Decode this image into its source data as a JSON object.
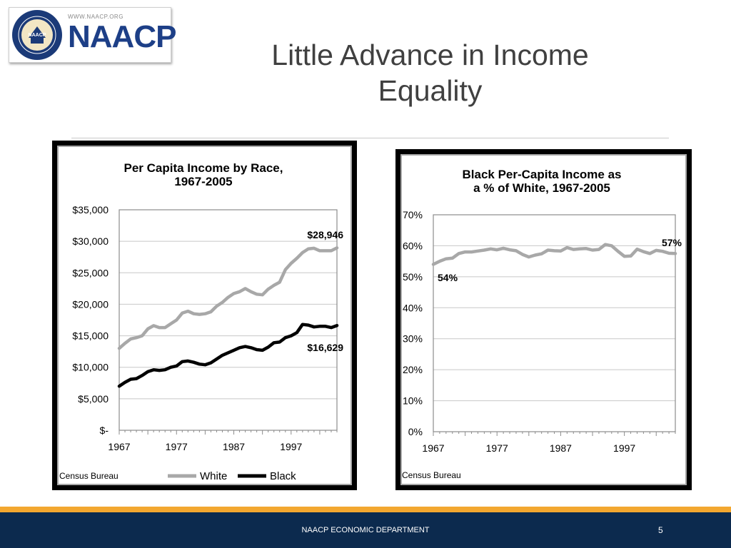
{
  "logo": {
    "url": "WWW.NAACP.ORG",
    "name": "NAACP",
    "seal_text": "NAACP"
  },
  "slide": {
    "title_line1": "Little Advance in Income",
    "title_line2": "Equality"
  },
  "chart_data": [
    {
      "type": "line",
      "title": [
        "Per Capita Income by Race,",
        "1967-2005"
      ],
      "xlabel": "",
      "ylabel": "",
      "xlim": [
        1967,
        2005
      ],
      "ylim": [
        0,
        35000
      ],
      "x_ticks": [
        1967,
        1977,
        1987,
        1997
      ],
      "x_tick_labels": [
        "1967",
        "1977",
        "1987",
        "1997"
      ],
      "y_ticks": [
        0,
        5000,
        10000,
        15000,
        20000,
        25000,
        30000,
        35000
      ],
      "y_tick_labels": [
        "$-",
        "$5,000",
        "$10,000",
        "$15,000",
        "$20,000",
        "$25,000",
        "$30,000",
        "$35,000"
      ],
      "grid": true,
      "legend_position": "bottom",
      "source": "Census Bureau",
      "series": [
        {
          "name": "White",
          "color": "#a8a8a8",
          "x": [
            1967,
            1968,
            1969,
            1970,
            1971,
            1972,
            1973,
            1974,
            1975,
            1976,
            1977,
            1978,
            1979,
            1980,
            1981,
            1982,
            1983,
            1984,
            1985,
            1986,
            1987,
            1988,
            1989,
            1990,
            1991,
            1992,
            1993,
            1994,
            1995,
            1996,
            1997,
            1998,
            1999,
            2000,
            2001,
            2002,
            2003,
            2004,
            2005
          ],
          "values": [
            13000,
            13800,
            14500,
            14700,
            15000,
            16100,
            16600,
            16300,
            16300,
            16900,
            17500,
            18600,
            18900,
            18500,
            18400,
            18500,
            18800,
            19700,
            20300,
            21100,
            21700,
            22000,
            22500,
            22000,
            21600,
            21500,
            22400,
            23000,
            23500,
            25500,
            26500,
            27300,
            28200,
            28800,
            28900,
            28500,
            28500,
            28500,
            28946
          ],
          "end_label": "$28,946"
        },
        {
          "name": "Black",
          "color": "#000000",
          "x": [
            1967,
            1968,
            1969,
            1970,
            1971,
            1972,
            1973,
            1974,
            1975,
            1976,
            1977,
            1978,
            1979,
            1980,
            1981,
            1982,
            1983,
            1984,
            1985,
            1986,
            1987,
            1988,
            1989,
            1990,
            1991,
            1992,
            1993,
            1994,
            1995,
            1996,
            1997,
            1998,
            1999,
            2000,
            2001,
            2002,
            2003,
            2004,
            2005
          ],
          "values": [
            7000,
            7600,
            8100,
            8200,
            8700,
            9300,
            9600,
            9500,
            9600,
            10000,
            10200,
            10900,
            11000,
            10800,
            10500,
            10400,
            10700,
            11300,
            11900,
            12300,
            12700,
            13100,
            13300,
            13100,
            12800,
            12700,
            13200,
            13900,
            14000,
            14700,
            15000,
            15500,
            16800,
            16700,
            16400,
            16500,
            16500,
            16300,
            16629
          ],
          "end_label": "$16,629"
        }
      ]
    },
    {
      "type": "line",
      "title": [
        "Black Per-Capita Income as",
        "a % of White, 1967-2005"
      ],
      "xlabel": "",
      "ylabel": "",
      "xlim": [
        1967,
        2005
      ],
      "ylim": [
        0,
        70
      ],
      "x_ticks": [
        1967,
        1977,
        1987,
        1997
      ],
      "x_tick_labels": [
        "1967",
        "1977",
        "1987",
        "1997"
      ],
      "y_ticks": [
        0,
        10,
        20,
        30,
        40,
        50,
        60,
        70
      ],
      "y_tick_labels": [
        "0%",
        "10%",
        "20%",
        "30%",
        "40%",
        "50%",
        "60%",
        "70%"
      ],
      "grid": true,
      "source": "Census Bureau",
      "series": [
        {
          "color": "#a8a8a8",
          "x": [
            1967,
            1968,
            1969,
            1970,
            1971,
            1972,
            1973,
            1974,
            1975,
            1976,
            1977,
            1978,
            1979,
            1980,
            1981,
            1982,
            1983,
            1984,
            1985,
            1986,
            1987,
            1988,
            1989,
            1990,
            1991,
            1992,
            1993,
            1994,
            1995,
            1996,
            1997,
            1998,
            1999,
            2000,
            2001,
            2002,
            2003,
            2004,
            2005
          ],
          "values": [
            54,
            55,
            55.8,
            56,
            57.5,
            58,
            58,
            58.3,
            58.6,
            59,
            58.7,
            59.2,
            58.7,
            58.4,
            57.2,
            56.4,
            57,
            57.4,
            58.6,
            58.4,
            58.3,
            59.4,
            58.8,
            59,
            59.1,
            58.6,
            58.8,
            60.4,
            60,
            58.2,
            56.6,
            56.7,
            58.9,
            58.1,
            57.5,
            58.5,
            58.2,
            57.6,
            57.5
          ],
          "start_label": "54%",
          "end_label": "57%"
        }
      ]
    }
  ],
  "footer": {
    "text": "NAACP ECONOMIC DEPARTMENT",
    "page": "5"
  }
}
